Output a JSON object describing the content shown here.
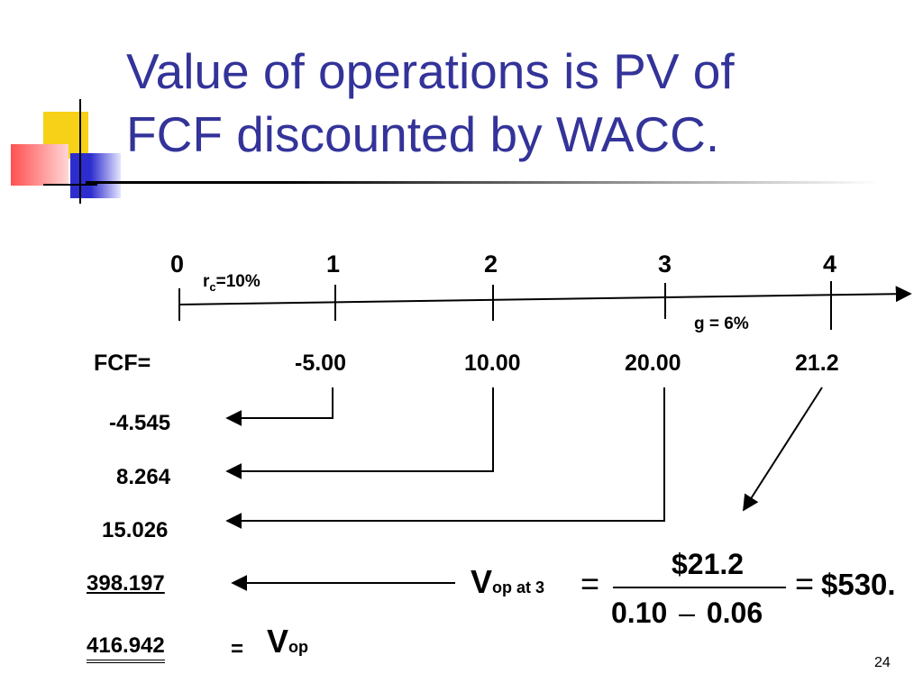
{
  "title": {
    "line1": "Value of operations is PV of",
    "line2": "FCF discounted by WACC."
  },
  "timeline": {
    "periods": [
      "0",
      "1",
      "2",
      "3",
      "4"
    ],
    "rate_symbol": "r",
    "rate_sub": "c",
    "rate_value": "=10%",
    "growth": "g = 6%"
  },
  "fcf": {
    "label": "FCF=",
    "values": [
      "-5.00",
      "10.00",
      "20.00",
      "21.2"
    ]
  },
  "pv": {
    "values": [
      "-4.545",
      "8.264",
      "15.026",
      "398.197"
    ],
    "total": "416.942",
    "equals": "="
  },
  "vop": {
    "symbol": "V",
    "sub": "op"
  },
  "formula": {
    "symbol": "V",
    "sub": "op at 3",
    "eq": "=",
    "numerator": "$21.2",
    "denominator_left": "0.10",
    "minus": "–",
    "denominator_right": "0.06",
    "eq2": "=",
    "result": "$530."
  },
  "slide_number": "24",
  "colors": {
    "title": "#33339a",
    "accent_yellow": "#f7d117",
    "accent_blue": "#3a3ad6",
    "accent_red": "#ff3a3a"
  }
}
